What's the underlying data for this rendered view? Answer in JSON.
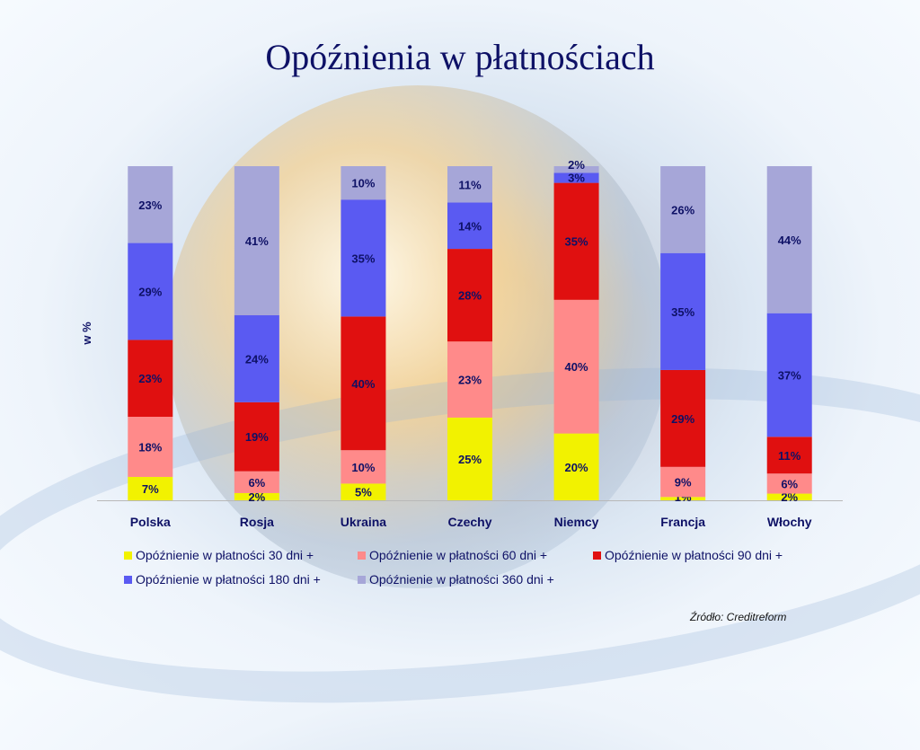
{
  "page": {
    "title": "Opóźnienia w płatnościach",
    "source": "Źródło: Creditreform"
  },
  "chart_data": {
    "type": "bar",
    "stacked": true,
    "normalized": true,
    "title": "Opóźnienia w płatnościach",
    "ylabel": "w %",
    "xlabel": "",
    "categories": [
      "Polska",
      "Rosja",
      "Ukraina",
      "Czechy",
      "Niemcy",
      "Francja",
      "Włochy"
    ],
    "ylim": [
      0,
      100
    ],
    "legend_position": "bottom",
    "series": [
      {
        "name": "Opóźnienie w płatności 30 dni +",
        "color": "#f2f200",
        "values": [
          7,
          2,
          5,
          25,
          20,
          1,
          2
        ]
      },
      {
        "name": "Opóźnienie w płatności 60 dni +",
        "color": "#ff8a8a",
        "values": [
          18,
          6,
          10,
          23,
          40,
          9,
          6
        ]
      },
      {
        "name": "Opóźnienie w płatności 90 dni +",
        "color": "#e01010",
        "values": [
          23,
          19,
          40,
          28,
          35,
          29,
          11
        ]
      },
      {
        "name": "Opóźnienie w płatności 180 dni +",
        "color": "#5a5af2",
        "values": [
          29,
          24,
          35,
          14,
          3,
          35,
          37
        ]
      },
      {
        "name": "Opóźnienie w płatności 360 dni +",
        "color": "#a6a6d8",
        "values": [
          23,
          41,
          10,
          11,
          2,
          26,
          44
        ]
      }
    ],
    "label_suffix": "%"
  }
}
